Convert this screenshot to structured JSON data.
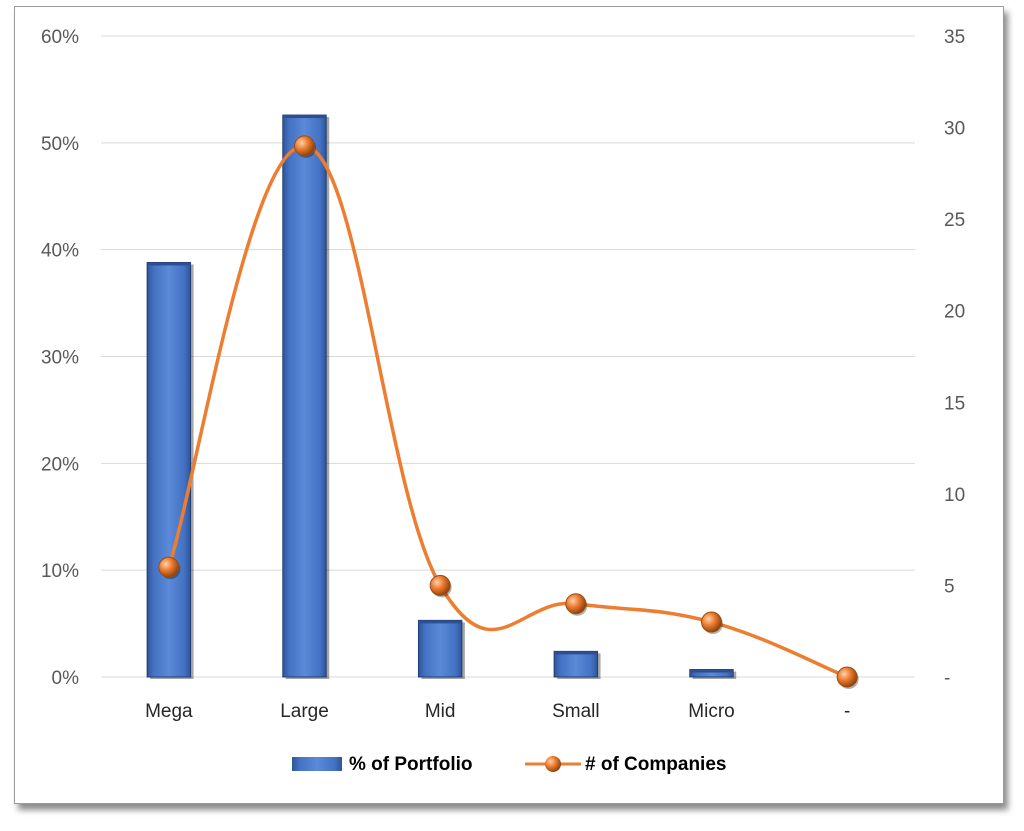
{
  "chart_data": {
    "type": "bar+line",
    "categories": [
      "Mega",
      "Large",
      "Mid",
      "Small",
      "Micro",
      "-"
    ],
    "series": [
      {
        "name": "% of Portfolio",
        "type": "bar",
        "axis": "left",
        "values": [
          38.8,
          52.6,
          5.3,
          2.4,
          0.7,
          0
        ],
        "color": "#4472C4"
      },
      {
        "name": "# of Companies",
        "type": "line",
        "axis": "right",
        "values": [
          6,
          29,
          5,
          4,
          3,
          0
        ],
        "color": "#ED7D31"
      }
    ],
    "y_left": {
      "min": 0,
      "max": 60,
      "step": 10,
      "tick_labels": [
        "0%",
        "10%",
        "20%",
        "30%",
        "40%",
        "50%",
        "60%"
      ]
    },
    "y_right": {
      "min": 0,
      "max": 35,
      "step": 5,
      "tick_labels": [
        "-",
        "5",
        "10",
        "15",
        "20",
        "25",
        "30",
        "35"
      ]
    },
    "grid": true,
    "legend": "bottom",
    "title": "",
    "xlabel": "",
    "ylabel": ""
  }
}
